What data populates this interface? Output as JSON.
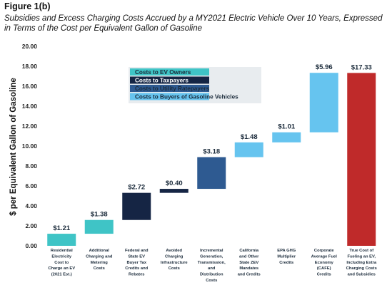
{
  "figure": {
    "label": "Figure 1(b)",
    "title": "Subsidies and Excess Charging Costs Accrued by a MY2021 Electric Vehicle Over 10 Years, Expressed in Terms of the Cost per Equivalent Gallon of Gasoline"
  },
  "colors": {
    "ev_owners": "#3fc4c6",
    "taxpayers": "#152544",
    "ratepayers": "#2e5a91",
    "gasoline_buyers": "#66c4ef",
    "total": "#bf2a2a"
  },
  "chart_data": {
    "type": "bar",
    "subtype": "waterfall",
    "ylabel": "$ per Equivalent Gallon of Gasoline",
    "ylim": [
      0,
      20
    ],
    "yticks": [
      "0.00",
      "2.00",
      "4.00",
      "6.00",
      "8.00",
      "10.00",
      "12.00",
      "14.00",
      "16.00",
      "18.00",
      "20.00"
    ],
    "grid": false,
    "legend_position": "top-center",
    "legend": [
      {
        "label": "Costs to EV Owners",
        "color_key": "ev_owners"
      },
      {
        "label": "Costs to Taxpayers",
        "color_key": "taxpayers"
      },
      {
        "label": "Costs to Utility Ratepayers",
        "color_key": "ratepayers"
      },
      {
        "label": "Costs to Buyers of Gasoline Vehicles",
        "color_key": "gasoline_buyers"
      }
    ],
    "bars": [
      {
        "category": [
          "Residential",
          "Electricity",
          "Cost to",
          "Charge an EV",
          "(2021 Est.)"
        ],
        "start": 0.0,
        "end": 1.21,
        "value_label": "$1.21",
        "color_key": "ev_owners"
      },
      {
        "category": [
          "Additional",
          "Charging and",
          "Metering",
          "Costs"
        ],
        "start": 1.21,
        "end": 2.59,
        "value_label": "$1.38",
        "color_key": "ev_owners"
      },
      {
        "category": [
          "Federal and",
          "State EV",
          "Buyer Tax",
          "Credits and",
          "Rebates"
        ],
        "start": 2.59,
        "end": 5.31,
        "value_label": "$2.72",
        "color_key": "taxpayers"
      },
      {
        "category": [
          "Avoided",
          "Charging",
          "Infrastructure",
          "Costs"
        ],
        "start": 5.31,
        "end": 5.71,
        "value_label": "$0.40",
        "color_key": "taxpayers"
      },
      {
        "category": [
          "Incremental",
          "Generation,",
          "Transmission,",
          "and",
          "Distribution",
          "Costs"
        ],
        "start": 5.71,
        "end": 8.89,
        "value_label": "$3.18",
        "color_key": "ratepayers"
      },
      {
        "category": [
          "California",
          "and Other",
          "State ZEV",
          "Mandates",
          "and Credits"
        ],
        "start": 8.89,
        "end": 10.37,
        "value_label": "$1.48",
        "color_key": "gasoline_buyers"
      },
      {
        "category": [
          "EPA GHG",
          "Multiplier",
          "Credits"
        ],
        "start": 10.37,
        "end": 11.38,
        "value_label": "$1.01",
        "color_key": "gasoline_buyers"
      },
      {
        "category": [
          "Corporate",
          "Average Fuel",
          "Economy",
          "(CAFE)",
          "Credits"
        ],
        "start": 11.38,
        "end": 17.34,
        "value_label": "$5.96",
        "color_key": "gasoline_buyers"
      },
      {
        "category": [
          "True Cost of",
          "Fueling an EV,",
          "Including Extra",
          "Charging Costs",
          "and Subsidies"
        ],
        "start": 0.0,
        "end": 17.33,
        "value_label": "$17.33",
        "color_key": "total"
      }
    ]
  }
}
